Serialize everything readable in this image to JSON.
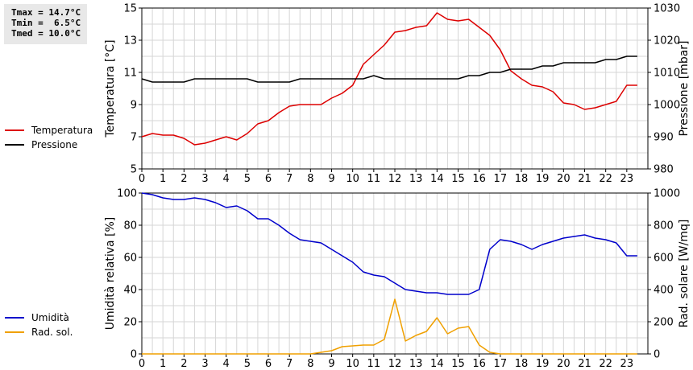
{
  "stats": {
    "tmax": "Tmax = 14.7°C",
    "tmin": "Tmin =  6.5°C",
    "tmed": "Tmed = 10.0°C"
  },
  "legend_top": [
    {
      "label": "Temperatura",
      "color": "#dd0000"
    },
    {
      "label": "Pressione",
      "color": "#000000"
    }
  ],
  "legend_bottom": [
    {
      "label": "Umidità",
      "color": "#0000cc"
    },
    {
      "label": "Rad. sol.",
      "color": "#f0a000"
    }
  ],
  "chart_data": [
    {
      "type": "line",
      "x_ticks": [
        "0",
        "1",
        "2",
        "3",
        "4",
        "5",
        "6",
        "7",
        "8",
        "9",
        "10",
        "11",
        "12",
        "13",
        "14",
        "15",
        "16",
        "17",
        "18",
        "19",
        "20",
        "21",
        "22",
        "23"
      ],
      "xlim": [
        0,
        24
      ],
      "ylabel": "Temperatura [°C]",
      "ylim": [
        5,
        15
      ],
      "y_ticks": [
        "5",
        "7",
        "9",
        "11",
        "13",
        "15"
      ],
      "ylabel_right": "Pressione [mbar]",
      "ylim_right": [
        980,
        1030
      ],
      "y_ticks_right": [
        "980",
        "990",
        "1000",
        "1010",
        "1020",
        "1030"
      ],
      "grid": true,
      "series": [
        {
          "name": "Temperatura",
          "color": "#dd0000",
          "axis": "left",
          "x": [
            0,
            0.5,
            1,
            1.5,
            2,
            2.5,
            3,
            3.5,
            4,
            4.5,
            5,
            5.5,
            6,
            6.5,
            7,
            7.5,
            8,
            8.5,
            9,
            9.5,
            10,
            10.5,
            11,
            11.5,
            12,
            12.5,
            13,
            13.5,
            14,
            14.5,
            15,
            15.5,
            16,
            16.5,
            17,
            17.5,
            18,
            18.5,
            19,
            19.5,
            20,
            20.5,
            21,
            21.5,
            22,
            22.5,
            23,
            23.5
          ],
          "values": [
            7.0,
            7.2,
            7.1,
            7.1,
            6.9,
            6.5,
            6.6,
            6.8,
            7.0,
            6.8,
            7.2,
            7.8,
            8.0,
            8.5,
            8.9,
            9.0,
            9.0,
            9.0,
            9.4,
            9.7,
            10.2,
            11.5,
            12.1,
            12.7,
            13.5,
            13.6,
            13.8,
            13.9,
            14.7,
            14.3,
            14.2,
            14.3,
            13.8,
            13.3,
            12.4,
            11.1,
            10.6,
            10.2,
            10.1,
            9.8,
            9.1,
            9.0,
            8.7,
            8.8,
            9.0,
            9.2,
            10.2,
            10.2
          ]
        },
        {
          "name": "Pressione",
          "color": "#000000",
          "axis": "right",
          "x": [
            0,
            0.5,
            1,
            1.5,
            2,
            2.5,
            3,
            3.5,
            4,
            4.5,
            5,
            5.5,
            6,
            6.5,
            7,
            7.5,
            8,
            8.5,
            9,
            9.5,
            10,
            10.5,
            11,
            11.5,
            12,
            12.5,
            13,
            13.5,
            14,
            14.5,
            15,
            15.5,
            16,
            16.5,
            17,
            17.5,
            18,
            18.5,
            19,
            19.5,
            20,
            20.5,
            21,
            21.5,
            22,
            22.5,
            23,
            23.5
          ],
          "values": [
            1008,
            1007,
            1007,
            1007,
            1007,
            1008,
            1008,
            1008,
            1008,
            1008,
            1008,
            1007,
            1007,
            1007,
            1007,
            1008,
            1008,
            1008,
            1008,
            1008,
            1008,
            1008,
            1009,
            1008,
            1008,
            1008,
            1008,
            1008,
            1008,
            1008,
            1008,
            1009,
            1009,
            1010,
            1010,
            1011,
            1011,
            1011,
            1012,
            1012,
            1013,
            1013,
            1013,
            1013,
            1014,
            1014,
            1015,
            1015
          ]
        }
      ]
    },
    {
      "type": "line",
      "x_ticks": [
        "0",
        "1",
        "2",
        "3",
        "4",
        "5",
        "6",
        "7",
        "8",
        "9",
        "10",
        "11",
        "12",
        "13",
        "14",
        "15",
        "16",
        "17",
        "18",
        "19",
        "20",
        "21",
        "22",
        "23"
      ],
      "xlim": [
        0,
        24
      ],
      "ylabel": "Umidità relativa [%]",
      "ylim": [
        0,
        100
      ],
      "y_ticks": [
        "0",
        "20",
        "40",
        "60",
        "80",
        "100"
      ],
      "ylabel_right": "Rad. solare [W/mq]",
      "ylim_right": [
        0,
        1000
      ],
      "y_ticks_right": [
        "0",
        "200",
        "400",
        "600",
        "800",
        "1000"
      ],
      "grid": true,
      "series": [
        {
          "name": "Umidità",
          "color": "#0000cc",
          "axis": "left",
          "x": [
            0,
            0.5,
            1,
            1.5,
            2,
            2.5,
            3,
            3.5,
            4,
            4.5,
            5,
            5.5,
            6,
            6.5,
            7,
            7.5,
            8,
            8.5,
            9,
            9.5,
            10,
            10.5,
            11,
            11.5,
            12,
            12.5,
            13,
            13.5,
            14,
            14.5,
            15,
            15.5,
            16,
            16.5,
            17,
            17.5,
            18,
            18.5,
            19,
            19.5,
            20,
            20.5,
            21,
            21.5,
            22,
            22.5,
            23,
            23.5
          ],
          "values": [
            100,
            99,
            97,
            96,
            96,
            97,
            96,
            94,
            91,
            92,
            89,
            84,
            84,
            80,
            75,
            71,
            70,
            69,
            65,
            61,
            57,
            51,
            49,
            48,
            44,
            40,
            39,
            38,
            38,
            37,
            37,
            37,
            40,
            65,
            71,
            70,
            68,
            65,
            68,
            70,
            72,
            73,
            74,
            72,
            71,
            69,
            61,
            61
          ]
        },
        {
          "name": "Rad. sol.",
          "color": "#f0a000",
          "axis": "right",
          "x": [
            0,
            0.5,
            1,
            1.5,
            2,
            2.5,
            3,
            3.5,
            4,
            4.5,
            5,
            5.5,
            6,
            6.5,
            7,
            7.5,
            8,
            8.5,
            9,
            9.5,
            10,
            10.5,
            11,
            11.5,
            12,
            12.5,
            13,
            13.5,
            14,
            14.5,
            15,
            15.5,
            16,
            16.5,
            17,
            17.5,
            18,
            18.5,
            19,
            19.5,
            20,
            20.5,
            21,
            21.5,
            22,
            22.5,
            23,
            23.5
          ],
          "values": [
            0,
            0,
            0,
            0,
            0,
            0,
            0,
            0,
            0,
            0,
            0,
            0,
            0,
            0,
            0,
            0,
            0,
            10,
            20,
            45,
            50,
            55,
            55,
            90,
            340,
            80,
            115,
            140,
            225,
            125,
            160,
            170,
            55,
            10,
            0,
            0,
            0,
            0,
            0,
            0,
            0,
            0,
            0,
            0,
            0,
            0,
            0,
            0
          ]
        }
      ]
    }
  ]
}
